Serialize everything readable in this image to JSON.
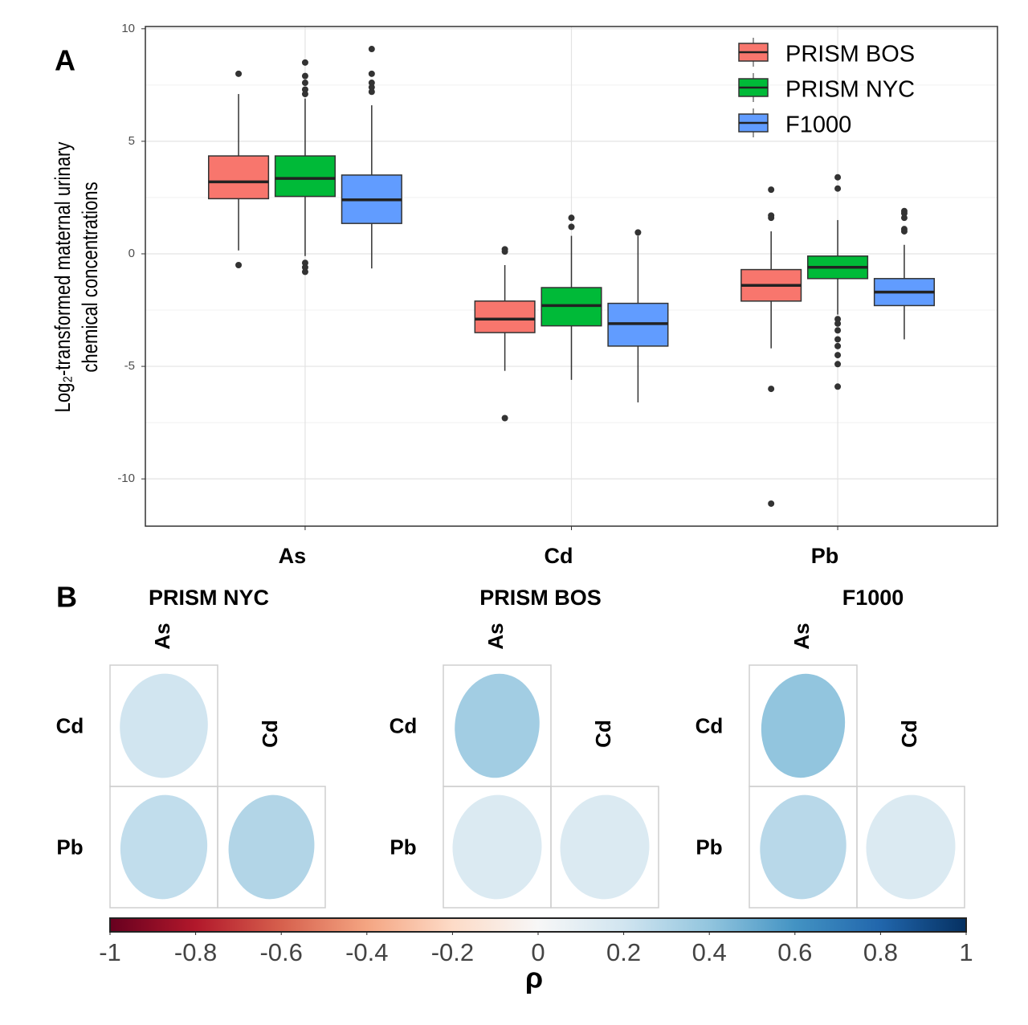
{
  "chart_data": [
    {
      "type": "box",
      "panel_label": "A",
      "y_label": [
        "Log₂-transformed maternal urinary",
        "chemical concentrations"
      ],
      "categories": [
        "As",
        "Cd",
        "Pb"
      ],
      "ylim": [
        -12.1,
        10.1
      ],
      "yticks": [
        -10,
        -5,
        0,
        5,
        10
      ],
      "grid": true,
      "legend": "top-right",
      "series": [
        {
          "name": "PRISM BOS",
          "color": "#f8766d",
          "min": [
            0.15,
            -5.2,
            -4.2
          ],
          "q1": [
            2.45,
            -3.5,
            -2.1
          ],
          "median": [
            3.2,
            -2.9,
            -1.4
          ],
          "q3": [
            4.35,
            -2.1,
            -0.7
          ],
          "max": [
            7.1,
            -0.5,
            1.0
          ],
          "outliers": [
            [
              8.0,
              -0.5
            ],
            [
              0.1,
              0.2,
              -7.3
            ],
            [
              1.6,
              1.7,
              2.85,
              -6.0,
              -11.1
            ]
          ]
        },
        {
          "name": "PRISM NYC",
          "color": "#00ba38",
          "min": [
            -0.1,
            -5.6,
            -2.7
          ],
          "q1": [
            2.55,
            -3.2,
            -1.1
          ],
          "median": [
            3.35,
            -2.3,
            -0.6
          ],
          "q3": [
            4.35,
            -1.5,
            -0.1
          ],
          "max": [
            6.9,
            0.8,
            1.5
          ],
          "outliers": [
            [
              7.1,
              7.3,
              7.6,
              7.9,
              8.5,
              -0.4,
              -0.6,
              -0.8
            ],
            [
              1.2,
              1.6
            ],
            [
              2.9,
              3.4,
              -2.9,
              -3.1,
              -3.4,
              -3.8,
              -4.1,
              -4.5,
              -4.9,
              -5.9
            ]
          ]
        },
        {
          "name": "F1000",
          "color": "#619cff",
          "min": [
            -0.65,
            -6.6,
            -3.8
          ],
          "q1": [
            1.35,
            -4.1,
            -2.3
          ],
          "median": [
            2.4,
            -3.1,
            -1.7
          ],
          "q3": [
            3.5,
            -2.2,
            -1.1
          ],
          "max": [
            6.6,
            0.8,
            0.4
          ],
          "outliers": [
            [
              7.2,
              7.4,
              7.6,
              8.0,
              9.1
            ],
            [
              0.95
            ],
            [
              1.0,
              1.1,
              1.6,
              1.8,
              1.9
            ]
          ]
        }
      ]
    },
    {
      "type": "corrplot",
      "panel_label": "B",
      "rows": [
        "Cd",
        "Pb"
      ],
      "cols": [
        "As",
        "Cd"
      ],
      "panels": [
        {
          "title": "PRISM NYC",
          "values": [
            [
              0.2
            ],
            [
              0.25,
              0.3
            ]
          ]
        },
        {
          "title": "PRISM BOS",
          "values": [
            [
              0.35
            ],
            [
              0.15,
              0.15
            ]
          ]
        },
        {
          "title": "F1000",
          "values": [
            [
              0.4
            ],
            [
              0.28,
              0.15
            ]
          ]
        }
      ],
      "colorbar": {
        "label": "ρ",
        "lim": [
          -1,
          1
        ],
        "ticks": [
          -1,
          -0.8,
          -0.6,
          -0.4,
          -0.2,
          0,
          0.2,
          0.4,
          0.6,
          0.8,
          1
        ],
        "colors": [
          "#67001f",
          "#b2182b",
          "#d6604d",
          "#f4a582",
          "#fddbc7",
          "#f7f7f7",
          "#d1e5f0",
          "#92c5de",
          "#4393c3",
          "#2166ac",
          "#053061"
        ]
      }
    }
  ]
}
